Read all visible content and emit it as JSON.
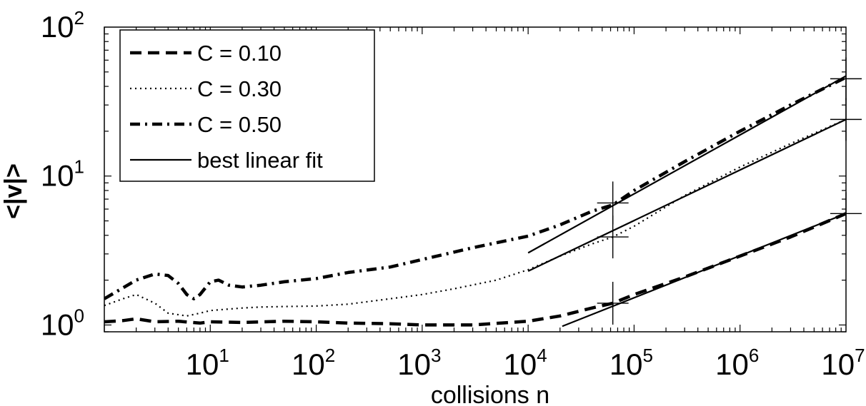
{
  "chart_data": {
    "type": "line",
    "title": "",
    "xlabel": "collisions n",
    "ylabel": "<|v|>",
    "xscale": "log",
    "yscale": "log",
    "xlim": [
      1,
      10000000
    ],
    "ylim": [
      0.9,
      100
    ],
    "x_ticks": [
      {
        "base": "10",
        "exp": "1",
        "value": 10
      },
      {
        "base": "10",
        "exp": "2",
        "value": 100
      },
      {
        "base": "10",
        "exp": "3",
        "value": 1000
      },
      {
        "base": "10",
        "exp": "4",
        "value": 10000
      },
      {
        "base": "10",
        "exp": "5",
        "value": 100000
      },
      {
        "base": "10",
        "exp": "6",
        "value": 1000000
      },
      {
        "base": "10",
        "exp": "7",
        "value": 10000000
      }
    ],
    "y_ticks": [
      {
        "base": "10",
        "exp": "0",
        "value": 1
      },
      {
        "base": "10",
        "exp": "1",
        "value": 10
      },
      {
        "base": "10",
        "exp": "2",
        "value": 100
      }
    ],
    "legend_position": "top-left",
    "series": [
      {
        "name": "C = 0.10",
        "style": "dashed",
        "x": [
          1,
          1.5,
          2,
          3,
          5,
          8,
          10,
          20,
          50,
          100,
          200,
          500,
          1000,
          3000,
          10000,
          20000,
          40000,
          63000,
          100000,
          300000,
          1000000,
          3000000,
          10000000
        ],
        "y": [
          1.05,
          1.07,
          1.1,
          1.05,
          1.06,
          1.03,
          1.05,
          1.04,
          1.06,
          1.05,
          1.03,
          1.02,
          1.0,
          1.0,
          1.06,
          1.15,
          1.3,
          1.4,
          1.6,
          2.1,
          2.9,
          3.9,
          5.6
        ]
      },
      {
        "name": "C = 0.30",
        "style": "dotted",
        "x": [
          1,
          1.5,
          2,
          3,
          4,
          6,
          8,
          10,
          15,
          20,
          30,
          50,
          100,
          200,
          500,
          1000,
          2000,
          5000,
          10000,
          20000,
          40000,
          63000,
          100000,
          300000,
          1000000,
          3000000,
          10000000
        ],
        "y": [
          1.35,
          1.5,
          1.6,
          1.4,
          1.2,
          1.15,
          1.2,
          1.25,
          1.28,
          1.3,
          1.32,
          1.33,
          1.34,
          1.38,
          1.5,
          1.6,
          1.75,
          2.0,
          2.35,
          2.9,
          3.5,
          3.9,
          4.6,
          7.4,
          11.5,
          16.5,
          24
        ]
      },
      {
        "name": "C = 0.50",
        "style": "dashdot",
        "x": [
          1,
          2,
          3,
          4,
          5,
          6,
          7,
          8,
          10,
          12,
          15,
          20,
          30,
          50,
          100,
          200,
          500,
          1000,
          3000,
          10000,
          20000,
          40000,
          63000,
          100000,
          300000,
          1000000,
          3000000,
          10000000
        ],
        "y": [
          1.5,
          2.0,
          2.2,
          2.15,
          1.9,
          1.6,
          1.5,
          1.6,
          1.95,
          2.0,
          1.85,
          1.8,
          1.85,
          1.95,
          2.05,
          2.25,
          2.45,
          2.75,
          3.3,
          3.95,
          4.7,
          5.8,
          6.4,
          8.0,
          12.5,
          20,
          30,
          46
        ]
      }
    ],
    "fit_lines": [
      {
        "name": "best linear fit",
        "x": [
          21000,
          10000000
        ],
        "y": [
          0.98,
          5.6
        ]
      },
      {
        "x": [
          10000,
          10000000
        ],
        "y": [
          2.3,
          24
        ]
      },
      {
        "x": [
          10000,
          10000000
        ],
        "y": [
          3.05,
          47
        ]
      }
    ],
    "error_markers": [
      {
        "x": 63000,
        "y": 1.4
      },
      {
        "x": 63000,
        "y": 3.9
      },
      {
        "x": 63000,
        "y": 6.6
      },
      {
        "x": 10000000,
        "y": 5.6
      },
      {
        "x": 10000000,
        "y": 24
      },
      {
        "x": 10000000,
        "y": 45
      }
    ]
  },
  "legend": {
    "items": [
      {
        "label": "C = 0.10",
        "style": "dashed"
      },
      {
        "label": "C = 0.30",
        "style": "dotted"
      },
      {
        "label": "C = 0.50",
        "style": "dashdot"
      },
      {
        "label": "best linear fit",
        "style": "solid"
      }
    ]
  }
}
